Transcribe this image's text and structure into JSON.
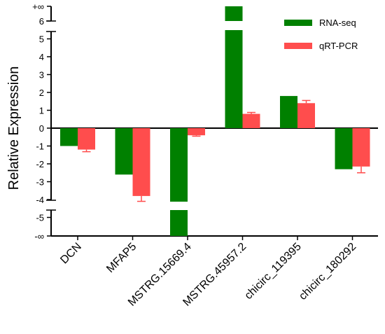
{
  "chart_data": {
    "type": "bar",
    "ylabel": "Relative Expression",
    "categories": [
      "DCN",
      "MFAP5",
      "MSTRG.15669.4",
      "MSTRG.45957.2",
      "chicirc_119395",
      "chicirc_180292"
    ],
    "series": [
      {
        "name": "RNA-seq",
        "color": "#008000",
        "values": [
          -1.0,
          -2.6,
          "-∞",
          "+∞",
          1.8,
          -2.3
        ],
        "errors": [
          null,
          null,
          null,
          null,
          null,
          null
        ]
      },
      {
        "name": "qRT-PCR",
        "color": "#ff4d4d",
        "values": [
          -1.2,
          -3.8,
          -0.4,
          0.8,
          1.4,
          -2.15
        ],
        "errors": [
          0.12,
          0.3,
          0.05,
          0.08,
          0.15,
          0.35
        ]
      }
    ],
    "ylim": [
      -5,
      6
    ],
    "yticks": [
      -5,
      -4,
      -3,
      -2,
      -1,
      0,
      1,
      2,
      3,
      4,
      5,
      6
    ],
    "axis_break_labels": {
      "top": "+∞",
      "bottom": "-∞"
    },
    "legend_position": "top-right"
  }
}
